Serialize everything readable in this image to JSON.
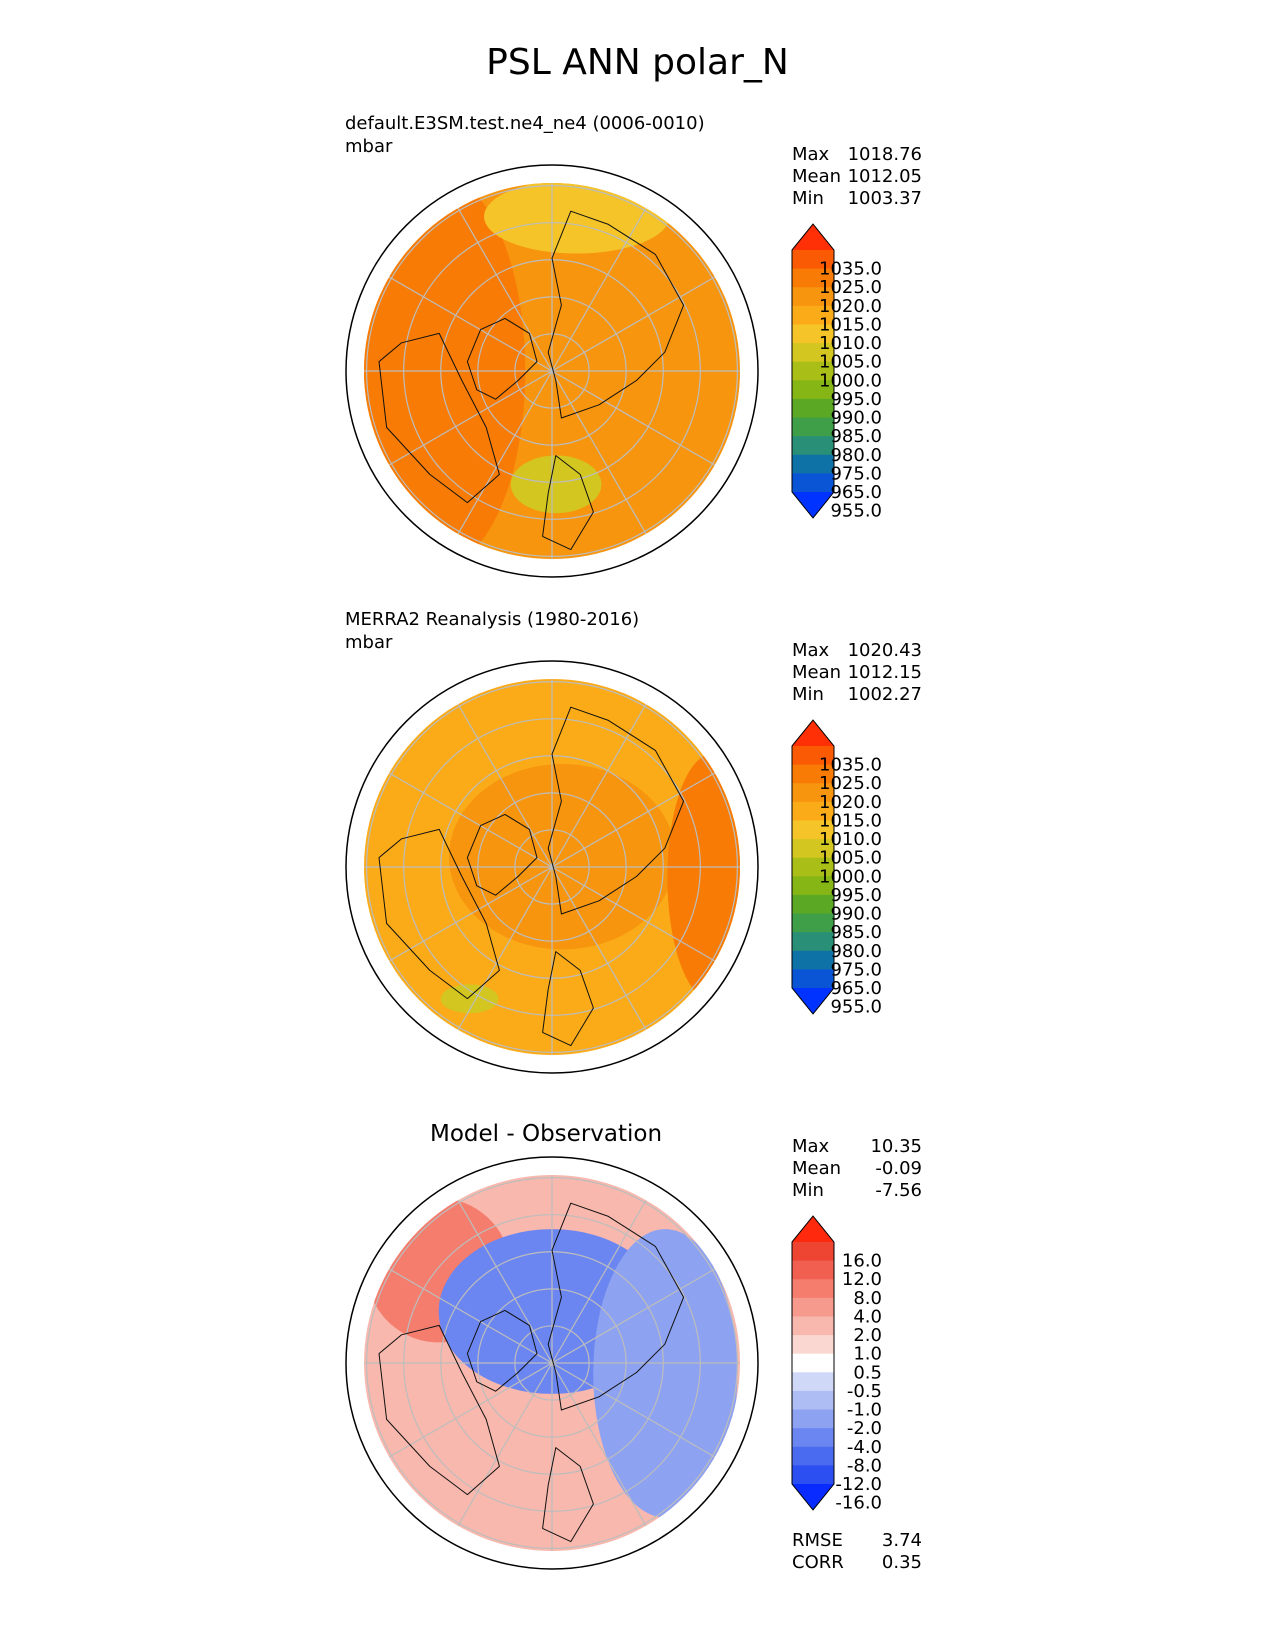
{
  "figure_title": "PSL ANN polar_N",
  "colors": {
    "land_outline": "#111111",
    "grid": "#bdbdbd",
    "abs_levels": [
      "#0033ff",
      "#0a55d6",
      "#0f72a6",
      "#2a8f77",
      "#3f9f48",
      "#5aa824",
      "#86b516",
      "#a9bf17",
      "#d4c620",
      "#f4c428",
      "#fbab18",
      "#f7950f",
      "#f77b05",
      "#fa5a03",
      "#ff2f06"
    ],
    "diff_levels": [
      "#0a2bff",
      "#2c4ff2",
      "#4a6af0",
      "#6b86f0",
      "#8da2f1",
      "#aebdf4",
      "#d0d8f8",
      "#ffffff",
      "#fbd7d1",
      "#f8b8ad",
      "#f59a8d",
      "#f47d6d",
      "#f05f4f",
      "#ee4432",
      "#ff2a0e"
    ]
  },
  "chart_data": [
    {
      "type": "heatmap",
      "projection": "north polar stereographic",
      "title": "default.E3SM.test.ne4_ne4 (0006-0010)",
      "units": "mbar",
      "stats": [
        {
          "label": "Max",
          "value": "1018.76"
        },
        {
          "label": "Mean",
          "value": "1012.05"
        },
        {
          "label": "Min",
          "value": "1003.37"
        }
      ],
      "colorbar_ticks": [
        "1035.0",
        "1025.0",
        "1020.0",
        "1015.0",
        "1010.0",
        "1005.0",
        "1000.0",
        "995.0",
        "990.0",
        "985.0",
        "980.0",
        "975.0",
        "965.0",
        "955.0"
      ],
      "field_regions": [
        {
          "level": 11,
          "value_mbar": 1015,
          "extent": "background"
        },
        {
          "level": 12,
          "value_mbar": 1020,
          "extent": "western rim"
        },
        {
          "level": 9,
          "value_mbar": 1010,
          "extent": "north-east pacific sector"
        },
        {
          "level": 8,
          "value_mbar": 1005,
          "extent": "north pacific low"
        }
      ]
    },
    {
      "type": "heatmap",
      "projection": "north polar stereographic",
      "title": "MERRA2 Reanalysis (1980-2016)",
      "units": "mbar",
      "stats": [
        {
          "label": "Max",
          "value": "1020.43"
        },
        {
          "label": "Mean",
          "value": "1012.15"
        },
        {
          "label": "Min",
          "value": "1002.27"
        }
      ],
      "colorbar_ticks": [
        "1035.0",
        "1025.0",
        "1020.0",
        "1015.0",
        "1010.0",
        "1005.0",
        "1000.0",
        "995.0",
        "990.0",
        "985.0",
        "980.0",
        "975.0",
        "965.0",
        "955.0"
      ],
      "field_regions": [
        {
          "level": 10,
          "value_mbar": 1010,
          "extent": "background"
        },
        {
          "level": 11,
          "value_mbar": 1015,
          "extent": "arctic high and siberia"
        },
        {
          "level": 12,
          "value_mbar": 1020,
          "extent": "eastern rim"
        },
        {
          "level": 8,
          "value_mbar": 1005,
          "extent": "aleutian low"
        }
      ]
    },
    {
      "type": "heatmap",
      "projection": "north polar stereographic",
      "title": "Model - Observation",
      "units": "",
      "stats": [
        {
          "label": "Max",
          "value": "10.35"
        },
        {
          "label": "Mean",
          "value": "-0.09"
        },
        {
          "label": "Min",
          "value": "-7.56"
        }
      ],
      "colorbar_ticks": [
        "16.0",
        "12.0",
        "8.0",
        "4.0",
        "2.0",
        "1.0",
        "0.5",
        "-0.5",
        "-1.0",
        "-2.0",
        "-4.0",
        "-8.0",
        "-12.0",
        "-16.0"
      ],
      "metrics": [
        {
          "label": "RMSE",
          "value": "3.74"
        },
        {
          "label": "CORR",
          "value": "0.35"
        }
      ],
      "field_regions": [
        {
          "level": 9,
          "value_mbar": 2,
          "extent": "outer ring"
        },
        {
          "level": 11,
          "value_mbar": 6,
          "extent": "pacific rim"
        },
        {
          "level": 3,
          "value_mbar": -6,
          "extent": "arctic basin"
        },
        {
          "level": 4,
          "value_mbar": -3,
          "extent": "eurasian sector"
        }
      ]
    }
  ]
}
